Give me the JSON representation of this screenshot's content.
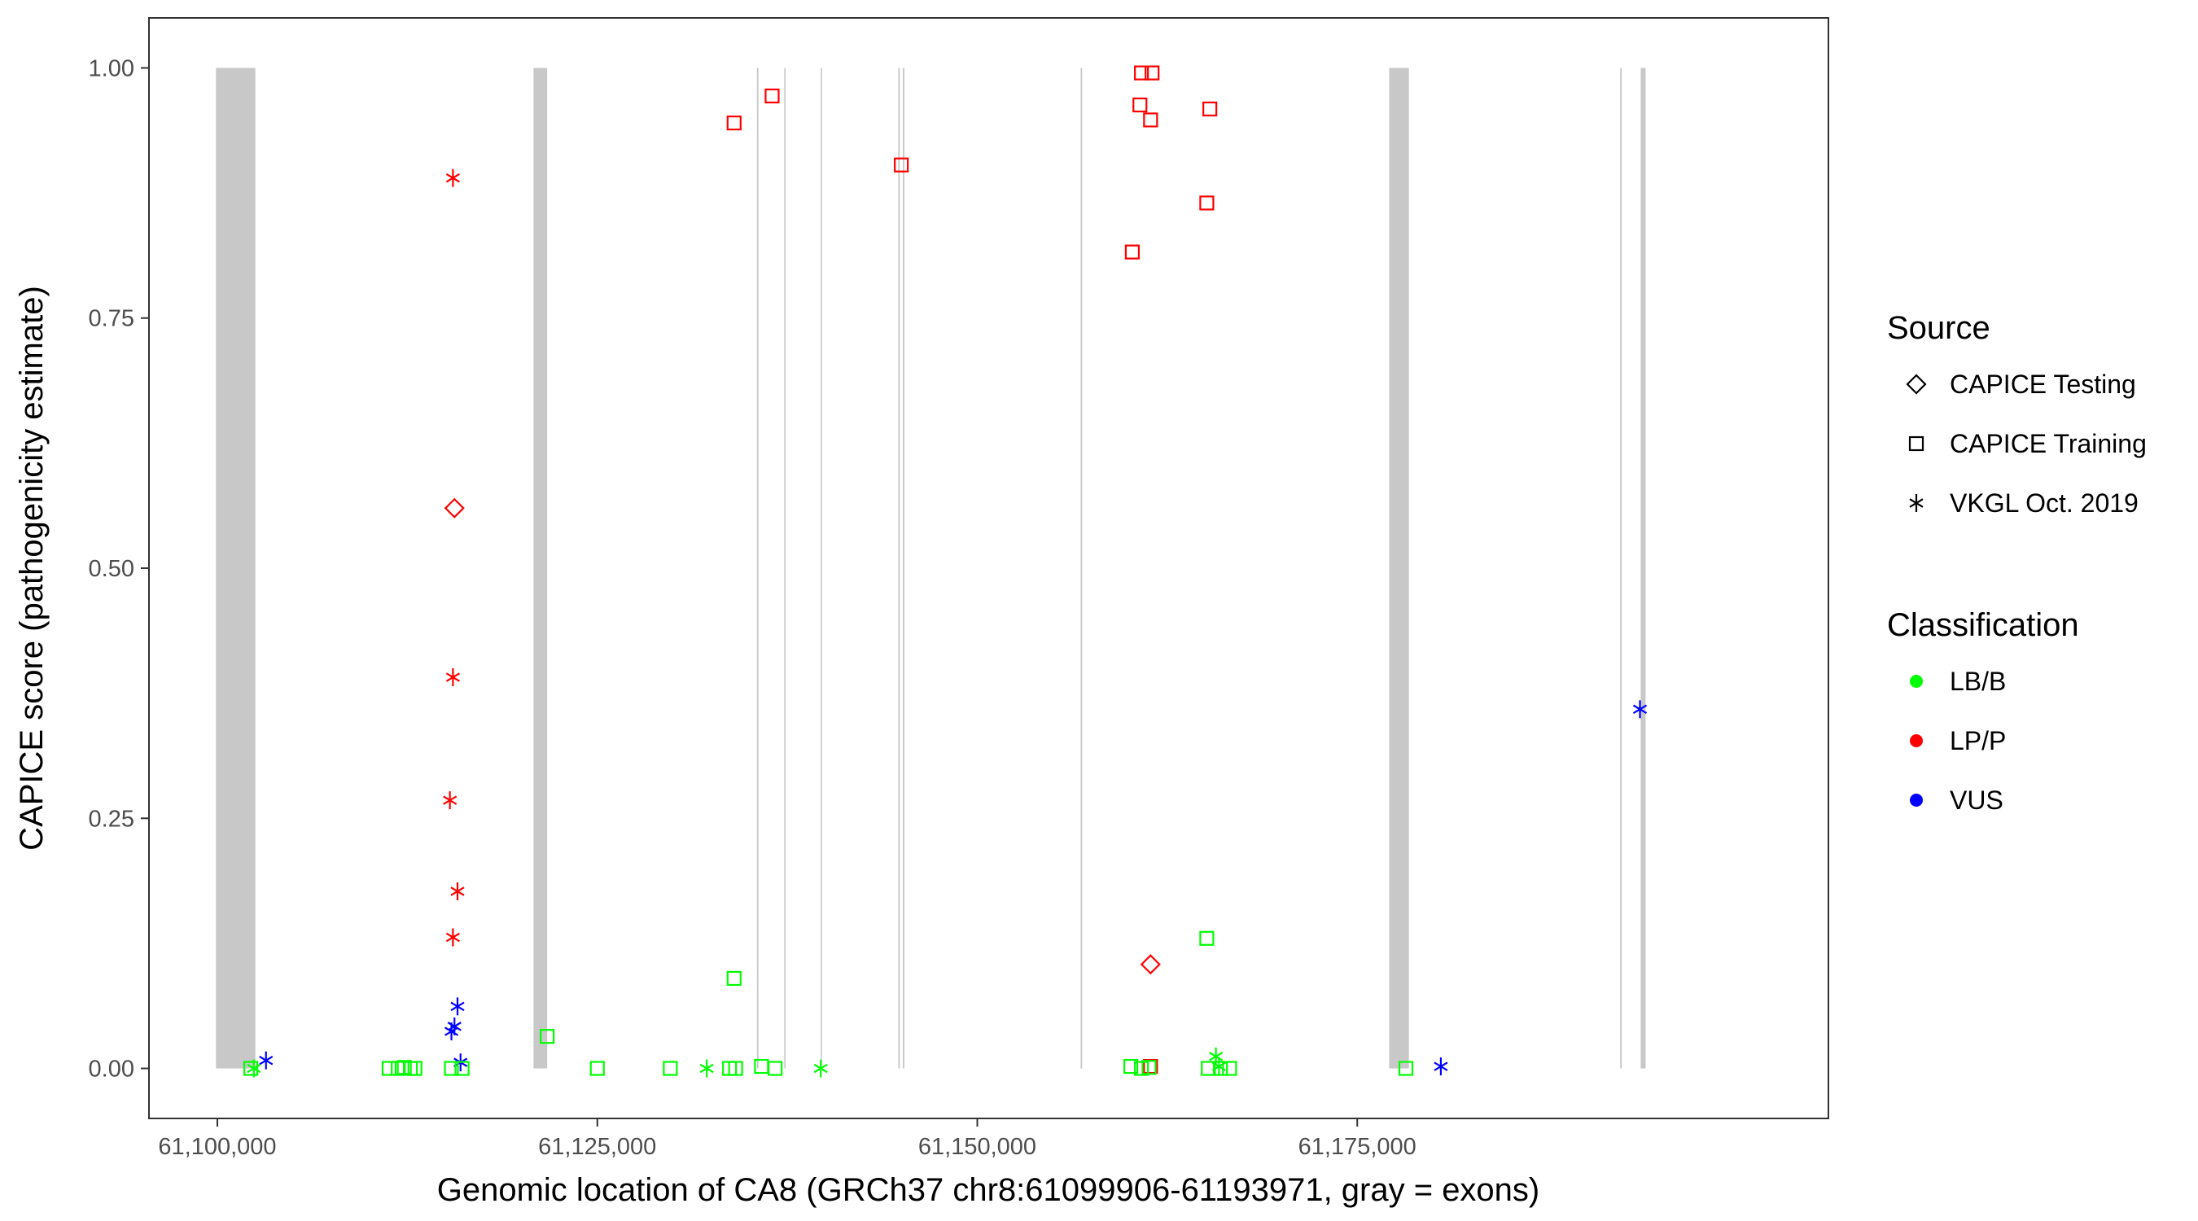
{
  "chart_data": {
    "type": "scatter",
    "xlabel": "Genomic location of CA8 (GRCh37 chr8:61099906-61193971, gray = exons)",
    "ylabel": "CAPICE score (pathogenicity estimate)",
    "xlim": [
      61095500,
      61206000
    ],
    "ylim": [
      -0.05,
      1.05
    ],
    "x_ticks": [
      61100000,
      61125000,
      61150000,
      61175000
    ],
    "x_tick_labels": [
      "61,100,000",
      "61,125,000",
      "61,150,000",
      "61,175,000"
    ],
    "y_ticks": [
      0,
      0.25,
      0.5,
      0.75,
      1
    ],
    "y_tick_labels": [
      "0.00",
      "0.25",
      "0.50",
      "0.75",
      "1.00"
    ],
    "grid": false,
    "legend_position": "right",
    "exons": [
      [
        61099906,
        61102500
      ],
      [
        61120800,
        61121700
      ],
      [
        61135500,
        61135600
      ],
      [
        61137300,
        61137350
      ],
      [
        61139700,
        61139750
      ],
      [
        61144800,
        61144900
      ],
      [
        61145100,
        61145200
      ],
      [
        61156800,
        61156900
      ],
      [
        61177100,
        61178400
      ],
      [
        61192300,
        61192400
      ],
      [
        61193650,
        61193971
      ]
    ],
    "legend_source": {
      "title": "Source",
      "entries": [
        {
          "label": "CAPICE Testing",
          "shape": "diamond"
        },
        {
          "label": "CAPICE Training",
          "shape": "square"
        },
        {
          "label": "VKGL Oct. 2019",
          "shape": "asterisk"
        }
      ]
    },
    "legend_classification": {
      "title": "Classification",
      "entries": [
        {
          "label": "LB/B",
          "color": "#00ff00"
        },
        {
          "label": "LP/P",
          "color": "#ff0000"
        },
        {
          "label": "VUS",
          "color": "#0000ff"
        }
      ]
    },
    "points": [
      {
        "x": 61134000,
        "y": 0.945,
        "source": "CAPICE Training",
        "cls": "LP/P"
      },
      {
        "x": 61136500,
        "y": 0.972,
        "source": "CAPICE Training",
        "cls": "LP/P"
      },
      {
        "x": 61145000,
        "y": 0.903,
        "source": "CAPICE Training",
        "cls": "LP/P"
      },
      {
        "x": 61160800,
        "y": 0.995,
        "source": "CAPICE Training",
        "cls": "LP/P"
      },
      {
        "x": 61161500,
        "y": 0.995,
        "source": "CAPICE Training",
        "cls": "LP/P"
      },
      {
        "x": 61160700,
        "y": 0.963,
        "source": "CAPICE Training",
        "cls": "LP/P"
      },
      {
        "x": 61161400,
        "y": 0.948,
        "source": "CAPICE Training",
        "cls": "LP/P"
      },
      {
        "x": 61165300,
        "y": 0.959,
        "source": "CAPICE Training",
        "cls": "LP/P"
      },
      {
        "x": 61165100,
        "y": 0.865,
        "source": "CAPICE Training",
        "cls": "LP/P"
      },
      {
        "x": 61160200,
        "y": 0.816,
        "source": "CAPICE Training",
        "cls": "LP/P"
      },
      {
        "x": 61161400,
        "y": 0.002,
        "source": "CAPICE Training",
        "cls": "LP/P"
      },
      {
        "x": 61115600,
        "y": 0.56,
        "source": "CAPICE Testing",
        "cls": "LP/P"
      },
      {
        "x": 61161400,
        "y": 0.104,
        "source": "CAPICE Testing",
        "cls": "LP/P"
      },
      {
        "x": 61115500,
        "y": 0.89,
        "source": "VKGL Oct. 2019",
        "cls": "LP/P"
      },
      {
        "x": 61115500,
        "y": 0.391,
        "source": "VKGL Oct. 2019",
        "cls": "LP/P"
      },
      {
        "x": 61115300,
        "y": 0.268,
        "source": "VKGL Oct. 2019",
        "cls": "LP/P"
      },
      {
        "x": 61115800,
        "y": 0.177,
        "source": "VKGL Oct. 2019",
        "cls": "LP/P"
      },
      {
        "x": 61115500,
        "y": 0.131,
        "source": "VKGL Oct. 2019",
        "cls": "LP/P"
      },
      {
        "x": 61103200,
        "y": 0.008,
        "source": "VKGL Oct. 2019",
        "cls": "VUS"
      },
      {
        "x": 61115800,
        "y": 0.062,
        "source": "VKGL Oct. 2019",
        "cls": "VUS"
      },
      {
        "x": 61115600,
        "y": 0.042,
        "source": "VKGL Oct. 2019",
        "cls": "VUS"
      },
      {
        "x": 61115400,
        "y": 0.037,
        "source": "VKGL Oct. 2019",
        "cls": "VUS"
      },
      {
        "x": 61116000,
        "y": 0.006,
        "source": "VKGL Oct. 2019",
        "cls": "VUS"
      },
      {
        "x": 61180500,
        "y": 0.002,
        "source": "VKGL Oct. 2019",
        "cls": "VUS"
      },
      {
        "x": 61193600,
        "y": 0.359,
        "source": "VKGL Oct. 2019",
        "cls": "VUS"
      },
      {
        "x": 61102400,
        "y": 0.0,
        "source": "VKGL Oct. 2019",
        "cls": "LB/B"
      },
      {
        "x": 61132200,
        "y": 0.0,
        "source": "VKGL Oct. 2019",
        "cls": "LB/B"
      },
      {
        "x": 61139700,
        "y": 0.0,
        "source": "VKGL Oct. 2019",
        "cls": "LB/B"
      },
      {
        "x": 61165700,
        "y": 0.012,
        "source": "VKGL Oct. 2019",
        "cls": "LB/B"
      },
      {
        "x": 61165900,
        "y": 0.002,
        "source": "VKGL Oct. 2019",
        "cls": "LB/B"
      },
      {
        "x": 61102200,
        "y": 0.0,
        "source": "CAPICE Training",
        "cls": "LB/B"
      },
      {
        "x": 61111300,
        "y": 0.0,
        "source": "CAPICE Training",
        "cls": "LB/B"
      },
      {
        "x": 61111900,
        "y": 0.0,
        "source": "CAPICE Training",
        "cls": "LB/B"
      },
      {
        "x": 61112300,
        "y": 0.001,
        "source": "CAPICE Training",
        "cls": "LB/B"
      },
      {
        "x": 61112700,
        "y": 0.0,
        "source": "CAPICE Training",
        "cls": "LB/B"
      },
      {
        "x": 61113000,
        "y": 0.0,
        "source": "CAPICE Training",
        "cls": "LB/B"
      },
      {
        "x": 61115400,
        "y": 0.0,
        "source": "CAPICE Training",
        "cls": "LB/B"
      },
      {
        "x": 61116100,
        "y": 0.0,
        "source": "CAPICE Training",
        "cls": "LB/B"
      },
      {
        "x": 61121700,
        "y": 0.032,
        "source": "CAPICE Training",
        "cls": "LB/B"
      },
      {
        "x": 61125000,
        "y": 0.0,
        "source": "CAPICE Training",
        "cls": "LB/B"
      },
      {
        "x": 61129800,
        "y": 0.0,
        "source": "CAPICE Training",
        "cls": "LB/B"
      },
      {
        "x": 61133700,
        "y": 0.0,
        "source": "CAPICE Training",
        "cls": "LB/B"
      },
      {
        "x": 61134100,
        "y": 0.0,
        "source": "CAPICE Training",
        "cls": "LB/B"
      },
      {
        "x": 61134000,
        "y": 0.09,
        "source": "CAPICE Training",
        "cls": "LB/B"
      },
      {
        "x": 61135800,
        "y": 0.002,
        "source": "CAPICE Training",
        "cls": "LB/B"
      },
      {
        "x": 61136700,
        "y": 0.0,
        "source": "CAPICE Training",
        "cls": "LB/B"
      },
      {
        "x": 61160100,
        "y": 0.002,
        "source": "CAPICE Training",
        "cls": "LB/B"
      },
      {
        "x": 61160800,
        "y": 0.0,
        "source": "CAPICE Training",
        "cls": "LB/B"
      },
      {
        "x": 61161300,
        "y": 0.001,
        "source": "CAPICE Training",
        "cls": "LB/B"
      },
      {
        "x": 61165100,
        "y": 0.13,
        "source": "CAPICE Training",
        "cls": "LB/B"
      },
      {
        "x": 61165200,
        "y": 0.0,
        "source": "CAPICE Training",
        "cls": "LB/B"
      },
      {
        "x": 61166000,
        "y": 0.0,
        "source": "CAPICE Training",
        "cls": "LB/B"
      },
      {
        "x": 61166600,
        "y": 0.0,
        "source": "CAPICE Training",
        "cls": "LB/B"
      },
      {
        "x": 61178200,
        "y": 0.0,
        "source": "CAPICE Training",
        "cls": "LB/B"
      }
    ]
  }
}
